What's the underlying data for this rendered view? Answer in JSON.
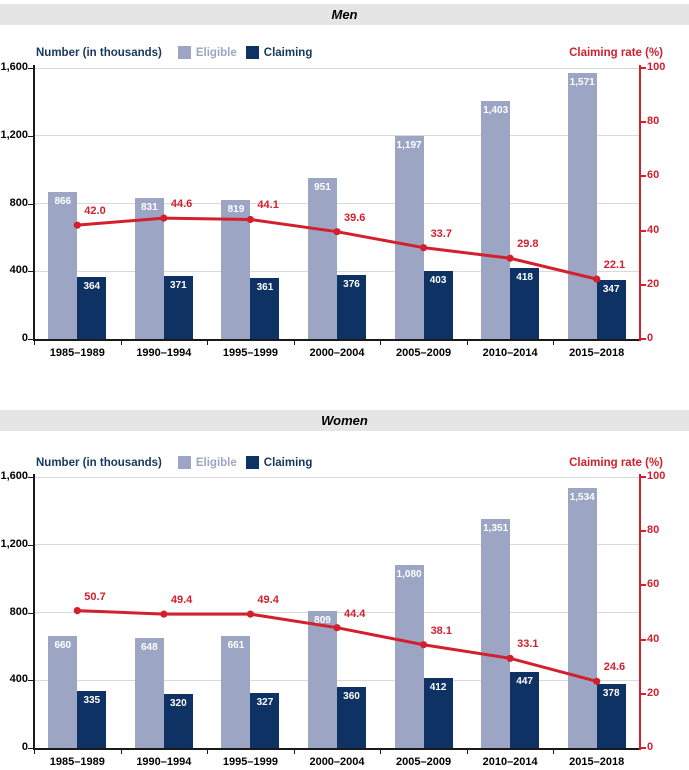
{
  "colors": {
    "eligible": "#9CA6C4",
    "claiming": "#0E3264",
    "rate": "#D2202E",
    "navy_text": "#17375E",
    "band": "#E5E5E5",
    "grid": "#D9D9D9",
    "axis": "#1A1A1A"
  },
  "chart_data": [
    {
      "type": "bar+line",
      "title": "Men",
      "left_axis_title": "Number (in thousands)",
      "right_axis_title": "Claiming rate (%)",
      "legend_position": "top",
      "grid": true,
      "categories": [
        "1985–1989",
        "1990–1994",
        "1995–1999",
        "2000–2004",
        "2005–2009",
        "2010–2014",
        "2015–2018"
      ],
      "series": [
        {
          "name": "Eligible",
          "kind": "bar",
          "axis": "left",
          "values": [
            866,
            831,
            819,
            951,
            1197,
            1403,
            1571
          ],
          "labels": [
            "866",
            "831",
            "819",
            "951",
            "1,197",
            "1,403",
            "1,571"
          ]
        },
        {
          "name": "Claiming",
          "kind": "bar",
          "axis": "left",
          "values": [
            364,
            371,
            361,
            376,
            403,
            418,
            347
          ],
          "labels": [
            "364",
            "371",
            "361",
            "376",
            "403",
            "418",
            "347"
          ]
        },
        {
          "name": "Claiming rate",
          "kind": "line",
          "axis": "right",
          "values": [
            42.0,
            44.6,
            44.1,
            39.6,
            33.7,
            29.8,
            22.1
          ],
          "labels": [
            "42.0",
            "44.6",
            "44.1",
            "39.6",
            "33.7",
            "29.8",
            "22.1"
          ]
        }
      ],
      "left_axis": {
        "max": 1600,
        "tick_values": [
          0,
          400,
          800,
          1200,
          1600
        ],
        "tick_labels": [
          "0",
          "400",
          "800",
          "1,200",
          "1,600"
        ]
      },
      "right_axis": {
        "max": 100,
        "tick_values": [
          0,
          20,
          40,
          60,
          80,
          100
        ],
        "tick_labels": [
          "0",
          "20",
          "40",
          "60",
          "80",
          "100"
        ]
      }
    },
    {
      "type": "bar+line",
      "title": "Women",
      "left_axis_title": "Number (in thousands)",
      "right_axis_title": "Claiming rate (%)",
      "legend_position": "top",
      "grid": true,
      "categories": [
        "1985–1989",
        "1990–1994",
        "1995–1999",
        "2000–2004",
        "2005–2009",
        "2010–2014",
        "2015–2018"
      ],
      "series": [
        {
          "name": "Eligible",
          "kind": "bar",
          "axis": "left",
          "values": [
            660,
            648,
            661,
            809,
            1080,
            1351,
            1534
          ],
          "labels": [
            "660",
            "648",
            "661",
            "809",
            "1,080",
            "1,351",
            "1,534"
          ]
        },
        {
          "name": "Claiming",
          "kind": "bar",
          "axis": "left",
          "values": [
            335,
            320,
            327,
            360,
            412,
            447,
            378
          ],
          "labels": [
            "335",
            "320",
            "327",
            "360",
            "412",
            "447",
            "378"
          ]
        },
        {
          "name": "Claiming rate",
          "kind": "line",
          "axis": "right",
          "values": [
            50.7,
            49.4,
            49.4,
            44.4,
            38.1,
            33.1,
            24.6
          ],
          "labels": [
            "50.7",
            "49.4",
            "49.4",
            "44.4",
            "38.1",
            "33.1",
            "24.6"
          ]
        }
      ],
      "left_axis": {
        "max": 1600,
        "tick_values": [
          0,
          400,
          800,
          1200,
          1600
        ],
        "tick_labels": [
          "0",
          "400",
          "800",
          "1,200",
          "1,600"
        ]
      },
      "right_axis": {
        "max": 100,
        "tick_values": [
          0,
          20,
          40,
          60,
          80,
          100
        ],
        "tick_labels": [
          "0",
          "20",
          "40",
          "60",
          "80",
          "100"
        ]
      }
    }
  ]
}
